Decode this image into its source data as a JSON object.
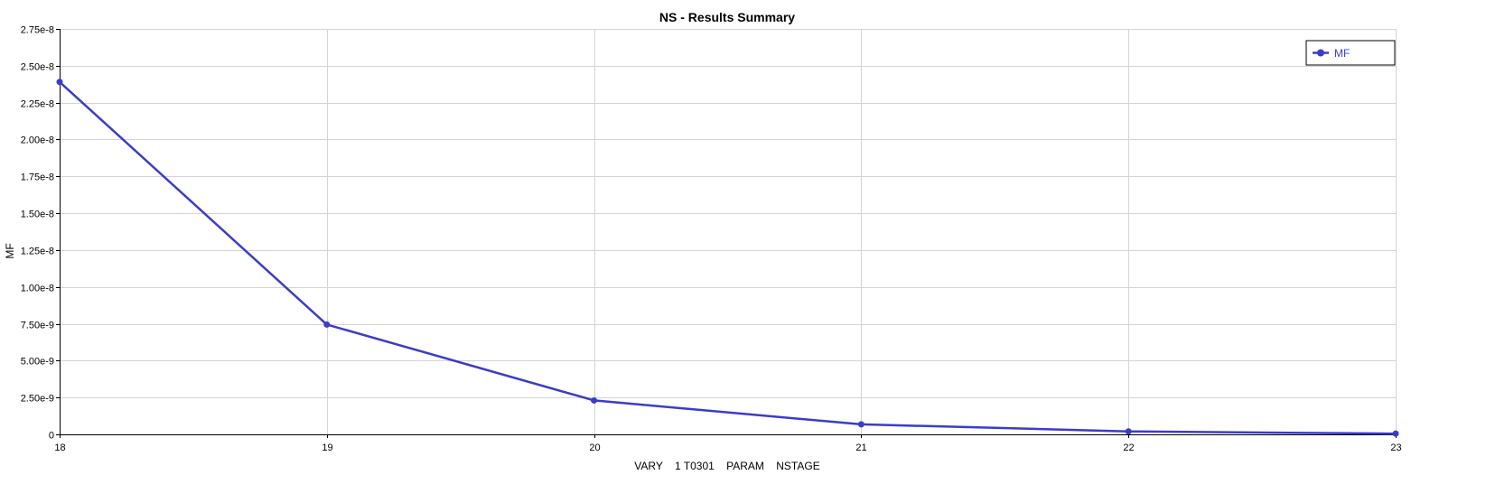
{
  "colors": {
    "series": "#3c3cc8",
    "grid": "#d4d4d4",
    "axis": "#000000"
  },
  "chart_data": {
    "type": "line",
    "title": "NS - Results Summary",
    "xlabel": "VARY    1 T0301    PARAM    NSTAGE",
    "ylabel": "MF",
    "x": [
      18,
      19,
      20,
      21,
      22,
      23
    ],
    "xlim": [
      18,
      23
    ],
    "ylim": [
      0,
      2.75e-08
    ],
    "x_ticks": [
      "18",
      "19",
      "20",
      "21",
      "22",
      "23"
    ],
    "y_ticks": [
      0,
      2.5e-09,
      5e-09,
      7.5e-09,
      1e-08,
      1.25e-08,
      1.5e-08,
      1.75e-08,
      2e-08,
      2.25e-08,
      2.5e-08,
      2.75e-08
    ],
    "y_tick_labels": [
      "0",
      "2.50e-9",
      "5.00e-9",
      "7.50e-9",
      "1.00e-8",
      "1.25e-8",
      "1.50e-8",
      "1.75e-8",
      "2.00e-8",
      "2.25e-8",
      "2.50e-8",
      "2.75e-8"
    ],
    "grid": true,
    "legend": "top-right",
    "series": [
      {
        "name": "MF",
        "values": [
          2.39e-08,
          7.45e-09,
          2.3e-09,
          6.8e-10,
          2e-10,
          5e-11
        ]
      }
    ]
  }
}
